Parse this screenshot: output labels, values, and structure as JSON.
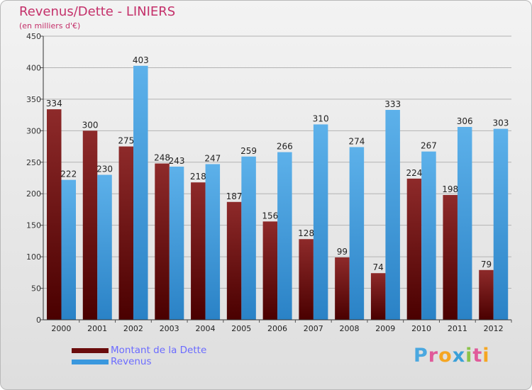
{
  "header": {
    "title": "Revenus/Dette - LINIERS",
    "subtitle": "(en milliers d'€)"
  },
  "colors": {
    "title": "#c4306a",
    "dette": "#7a1414",
    "revenus": "#3a98de",
    "legend_text": "#6b6bff",
    "grid": "#b3b3b3"
  },
  "chart_data": {
    "type": "bar",
    "title": "Revenus/Dette - LINIERS",
    "subtitle": "(en milliers d'€)",
    "xlabel": "",
    "ylabel": "",
    "ylim": [
      0,
      450
    ],
    "yticks": [
      0,
      50,
      100,
      150,
      200,
      250,
      300,
      350,
      400,
      450
    ],
    "grid": true,
    "legend_position": "bottom-left",
    "categories": [
      "2000",
      "2001",
      "2002",
      "2003",
      "2004",
      "2005",
      "2006",
      "2007",
      "2008",
      "2009",
      "2010",
      "2011",
      "2012"
    ],
    "series": [
      {
        "name": "Montant de la Dette",
        "color": "#7a1414",
        "values": [
          334,
          300,
          275,
          248,
          218,
          187,
          156,
          128,
          99,
          74,
          224,
          198,
          79
        ]
      },
      {
        "name": "Revenus",
        "color": "#3a98de",
        "values": [
          222,
          230,
          403,
          243,
          247,
          259,
          266,
          310,
          274,
          333,
          267,
          306,
          303
        ]
      }
    ]
  },
  "legend": {
    "items": [
      {
        "label": "Montant de la Dette",
        "color": "#7a1414"
      },
      {
        "label": "Revenus",
        "color": "#3a98de"
      }
    ]
  },
  "logo": {
    "text": "Proxiti",
    "colors": [
      "#4aa8e0",
      "#e05a9a",
      "#f5a623",
      "#3aa0d8",
      "#8bc34a",
      "#e05a9a",
      "#f5a623"
    ]
  }
}
